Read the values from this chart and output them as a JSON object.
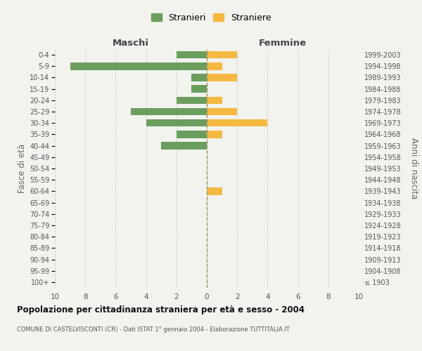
{
  "age_groups": [
    "100+",
    "95-99",
    "90-94",
    "85-89",
    "80-84",
    "75-79",
    "70-74",
    "65-69",
    "60-64",
    "55-59",
    "50-54",
    "45-49",
    "40-44",
    "35-39",
    "30-34",
    "25-29",
    "20-24",
    "15-19",
    "10-14",
    "5-9",
    "0-4"
  ],
  "birth_years": [
    "≤ 1903",
    "1904-1908",
    "1909-1913",
    "1914-1918",
    "1919-1923",
    "1924-1928",
    "1929-1933",
    "1934-1938",
    "1939-1943",
    "1944-1948",
    "1949-1953",
    "1954-1958",
    "1959-1963",
    "1964-1968",
    "1969-1973",
    "1974-1978",
    "1979-1983",
    "1984-1988",
    "1989-1993",
    "1994-1998",
    "1999-2003"
  ],
  "maschi": [
    0,
    0,
    0,
    0,
    0,
    0,
    0,
    0,
    0,
    0,
    0,
    0,
    3,
    2,
    4,
    5,
    2,
    1,
    1,
    9,
    2
  ],
  "femmine": [
    0,
    0,
    0,
    0,
    0,
    0,
    0,
    0,
    1,
    0,
    0,
    0,
    0,
    1,
    4,
    2,
    1,
    0,
    2,
    1,
    2
  ],
  "color_maschi": "#6b9e5e",
  "color_femmine": "#f5b942",
  "background_color": "#f2f2ee",
  "title": "Popolazione per cittadinanza straniera per età e sesso - 2004",
  "subtitle": "COMUNE DI CASTELVISCONTI (CR) - Dati ISTAT 1° gennaio 2004 - Elaborazione TUTTITALIA.IT",
  "ylabel_left": "Fasce di età",
  "ylabel_right": "Anni di nascita",
  "xlabel_left": "Maschi",
  "xlabel_right": "Femmine",
  "legend_maschi": "Stranieri",
  "legend_femmine": "Straniere",
  "xlim": 10,
  "grid_color": "#cccccc",
  "centerline_color": "#999966",
  "bar_height": 0.65
}
